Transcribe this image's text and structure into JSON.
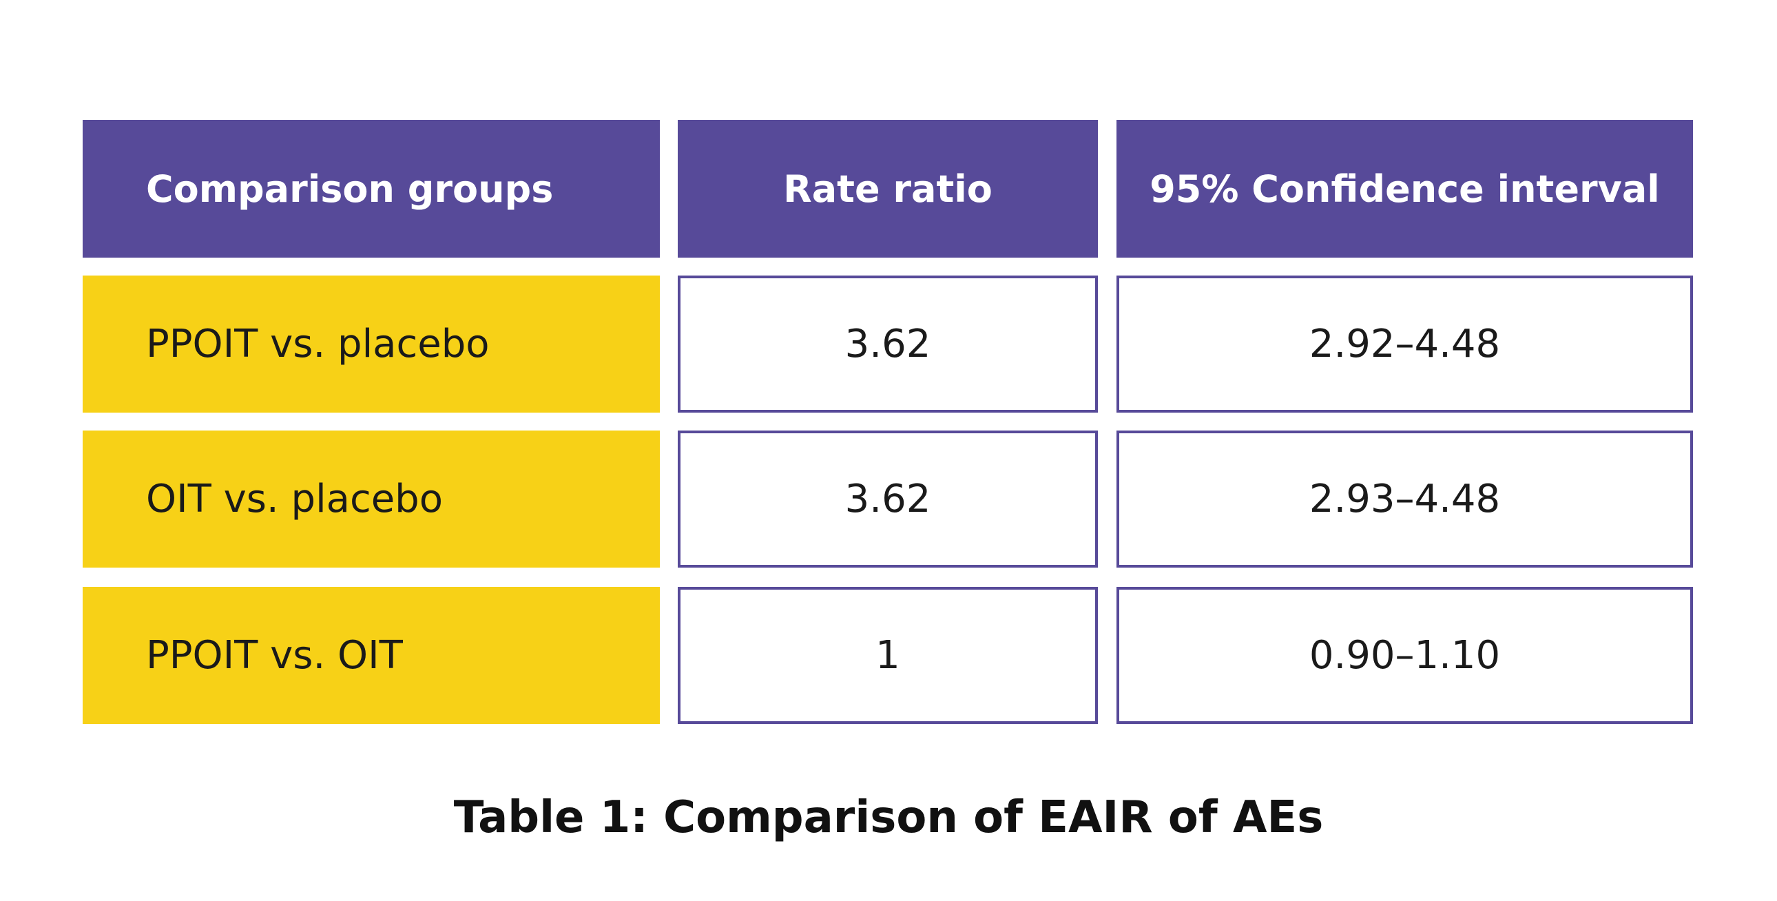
{
  "table": {
    "header": [
      "Comparison groups",
      "Rate ratio",
      "95% Confidence interval"
    ],
    "rows": [
      [
        "PPOIT vs. placebo",
        "3.62",
        "2.92–4.48"
      ],
      [
        "OIT vs. placebo",
        "3.62",
        "2.93–4.48"
      ],
      [
        "PPOIT vs. OIT",
        "1",
        "0.90–1.10"
      ]
    ]
  },
  "caption": "Table 1: Comparison of EAIR of AEs"
}
